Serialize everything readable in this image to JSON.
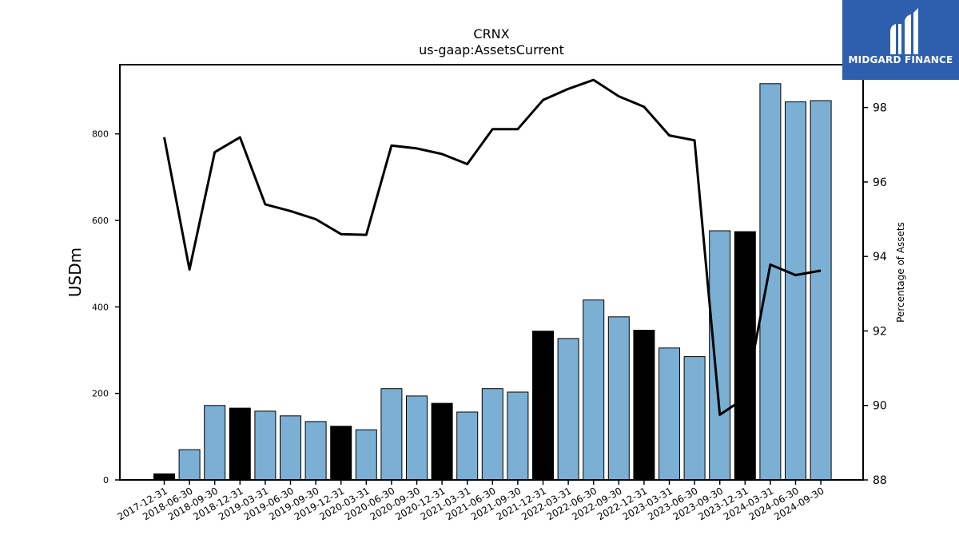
{
  "chart_data": {
    "type": "bar",
    "title": "CRNX",
    "subtitle": "us-gaap:AssetsCurrent",
    "ylabel": "USDm",
    "y2label": "Percentage of Assets",
    "ylim": [
      0,
      960
    ],
    "y2lim": [
      88,
      99.15
    ],
    "yticks": [
      0,
      200,
      400,
      600,
      800
    ],
    "y2ticks": [
      88,
      90,
      92,
      94,
      96,
      98
    ],
    "categories": [
      "2017-12-31",
      "2018-06-30",
      "2018-09-30",
      "2018-12-31",
      "2019-03-31",
      "2019-06-30",
      "2019-09-30",
      "2019-12-31",
      "2020-03-31",
      "2020-06-30",
      "2020-09-30",
      "2020-12-31",
      "2021-03-31",
      "2021-06-30",
      "2021-09-30",
      "2021-12-31",
      "2022-03-31",
      "2022-06-30",
      "2022-09-30",
      "2022-12-31",
      "2023-03-31",
      "2023-06-30",
      "2023-09-30",
      "2023-12-31",
      "2024-03-31",
      "2024-06-30",
      "2024-09-30"
    ],
    "series": [
      {
        "type": "bar",
        "values": [
          14,
          70,
          172,
          166,
          159,
          148,
          135,
          124,
          116,
          211,
          194,
          177,
          157,
          211,
          203,
          344,
          327,
          416,
          377,
          346,
          305,
          285,
          576,
          574,
          916,
          874,
          877
        ],
        "colors": [
          "#000000",
          "#7bafd4",
          "#7bafd4",
          "#000000",
          "#7bafd4",
          "#7bafd4",
          "#7bafd4",
          "#000000",
          "#7bafd4",
          "#7bafd4",
          "#7bafd4",
          "#000000",
          "#7bafd4",
          "#7bafd4",
          "#7bafd4",
          "#000000",
          "#7bafd4",
          "#7bafd4",
          "#7bafd4",
          "#000000",
          "#7bafd4",
          "#7bafd4",
          "#7bafd4",
          "#000000",
          "#7bafd4",
          "#7bafd4",
          "#7bafd4"
        ]
      },
      {
        "type": "line",
        "axis": "right",
        "values": [
          97.2,
          93.65,
          96.8,
          97.2,
          95.4,
          95.22,
          95.0,
          94.6,
          94.58,
          96.98,
          96.9,
          96.75,
          96.48,
          97.42,
          97.42,
          98.2,
          98.5,
          98.74,
          98.3,
          98.02,
          97.25,
          97.12,
          89.75,
          90.2,
          93.78,
          93.5,
          93.62
        ]
      }
    ],
    "colors": {
      "bar": "#7bafd4",
      "bar_highlight": "#000000",
      "line": "#000000"
    }
  },
  "logo": {
    "text": "MIDGARD FINANCE",
    "bg": "#2d5fae"
  }
}
